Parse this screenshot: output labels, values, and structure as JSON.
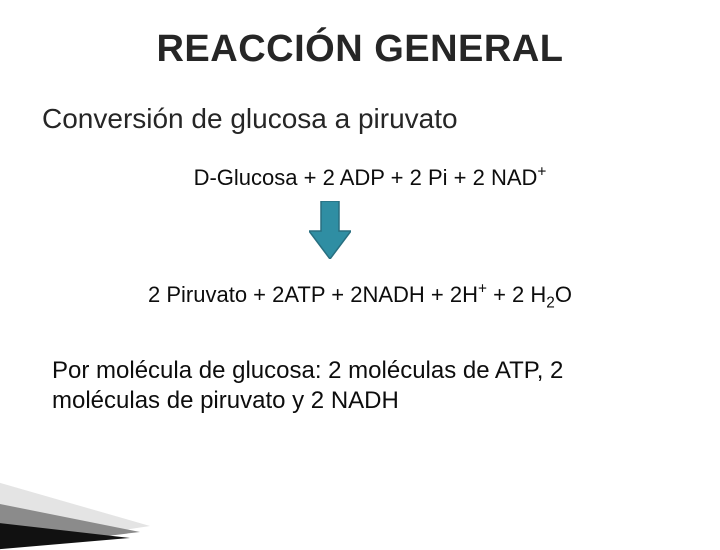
{
  "title": {
    "text": "REACCIÓN GENERAL",
    "color": "#262626",
    "fontsize": 38
  },
  "subtitle": {
    "text": "Conversión de glucosa a piruvato",
    "color": "#262626",
    "fontsize": 28
  },
  "reactants": {
    "html": "D-Glucosa + 2 ADP + 2 Pi + 2 NAD<sup>+</sup>",
    "color": "#0d0d0d",
    "fontsize": 22
  },
  "arrow": {
    "fill": "#2f8ea3",
    "stroke": "#286f80",
    "stroke_width": 1.5,
    "width": 42,
    "height": 58
  },
  "products": {
    "html": "2 Piruvato + 2ATP + 2NADH + 2H<sup>+</sup> + 2 H<sub>2</sub>O",
    "color": "#0d0d0d",
    "fontsize": 22
  },
  "summary": {
    "html": "Por molécula de glucosa: 2 moléculas de ATP, 2 moléculas de piruvato y 2 NADH",
    "color": "#0d0d0d",
    "fontsize": 24
  },
  "wedge": {
    "colors": [
      "#e4e4e4",
      "#8b8b8b",
      "#111111"
    ]
  },
  "background": "#ffffff"
}
